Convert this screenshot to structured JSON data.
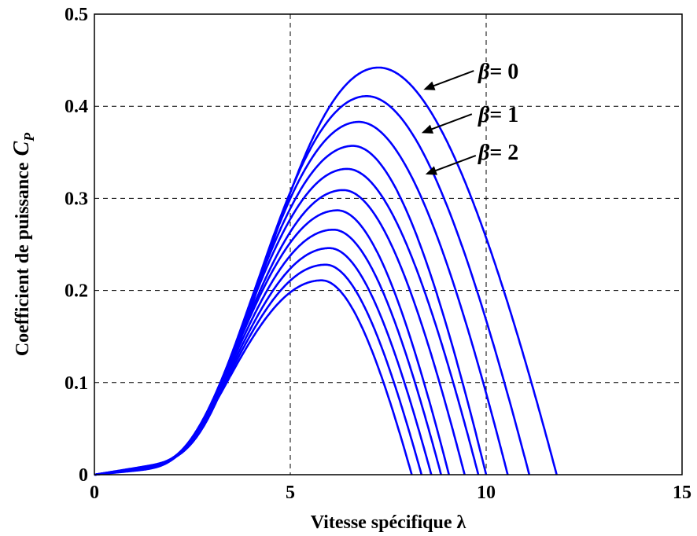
{
  "chart_data": {
    "type": "line",
    "title": "",
    "xlabel": "Vitesse spécifique λ",
    "ylabel_main": "Coefficient de puissance",
    "ylabel_sym": "C",
    "ylabel_sub": "P",
    "xlim": [
      0,
      15
    ],
    "ylim": [
      0,
      0.5
    ],
    "xticks": [
      "0",
      "5",
      "10",
      "15"
    ],
    "yticks": [
      "0",
      "0.1",
      "0.2",
      "0.3",
      "0.4",
      "0.5"
    ],
    "grid": true,
    "line_color": "#0000ff",
    "series": [
      {
        "peak_x": 7.25,
        "peak_y": 0.442,
        "zero_x": 11.8
      },
      {
        "peak_x": 6.95,
        "peak_y": 0.411,
        "zero_x": 11.1
      },
      {
        "peak_x": 6.75,
        "peak_y": 0.383,
        "zero_x": 10.55
      },
      {
        "peak_x": 6.6,
        "peak_y": 0.357,
        "zero_x": 10.0
      },
      {
        "peak_x": 6.45,
        "peak_y": 0.332,
        "zero_x": 9.8
      },
      {
        "peak_x": 6.35,
        "peak_y": 0.309,
        "zero_x": 9.45
      },
      {
        "peak_x": 6.2,
        "peak_y": 0.287,
        "zero_x": 9.05
      },
      {
        "peak_x": 6.1,
        "peak_y": 0.266,
        "zero_x": 8.85
      },
      {
        "peak_x": 6.0,
        "peak_y": 0.246,
        "zero_x": 8.6
      },
      {
        "peak_x": 5.9,
        "peak_y": 0.228,
        "zero_x": 8.35
      },
      {
        "peak_x": 5.8,
        "peak_y": 0.211,
        "zero_x": 8.1
      }
    ],
    "annotations": [
      {
        "symbol": "β",
        "text": "= 0",
        "target_x": 8.4,
        "target_y": 0.418
      },
      {
        "symbol": "β",
        "text": "= 1",
        "target_x": 8.35,
        "target_y": 0.371
      },
      {
        "symbol": "β",
        "text": "= 2",
        "target_x": 8.45,
        "target_y": 0.326
      }
    ]
  }
}
